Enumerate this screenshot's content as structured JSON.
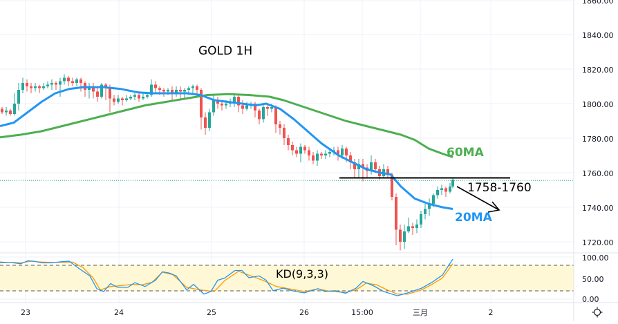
{
  "chart_data": {
    "type": "candlestick",
    "title": "GOLD 1H",
    "symbol": "GOLD",
    "timeframe": "1H",
    "price_axis": {
      "ticks": [
        "1860.00",
        "1840.00",
        "1820.00",
        "1800.00",
        "1780.00",
        "1760.00",
        "1740.00",
        "1720.00"
      ],
      "ylim": [
        1714,
        1862
      ]
    },
    "x_axis": {
      "ticks": [
        "23",
        "24",
        "25",
        "26",
        "15:00",
        "三月",
        "2"
      ]
    },
    "annotations": {
      "ma60_label": "60MA",
      "ma20_label": "20MA",
      "resistance_label": "1758-1760",
      "resistance_level": 1757,
      "current_price_line": 1755.5,
      "arrow": "down-right from resistance"
    },
    "series": [
      {
        "name": "20MA",
        "color": "#2196f3",
        "points": [
          [
            0,
            1787
          ],
          [
            20,
            1789
          ],
          [
            40,
            1795
          ],
          [
            60,
            1801
          ],
          [
            80,
            1806
          ],
          [
            100,
            1808.5
          ],
          [
            120,
            1809.5
          ],
          [
            150,
            1809.5
          ],
          [
            175,
            1808.5
          ],
          [
            200,
            1806.5
          ],
          [
            220,
            1806
          ],
          [
            250,
            1806
          ],
          [
            270,
            1806
          ],
          [
            290,
            1805
          ],
          [
            310,
            1802
          ],
          [
            330,
            1801
          ],
          [
            350,
            1800
          ],
          [
            370,
            1799
          ],
          [
            385,
            1800
          ],
          [
            405,
            1797
          ],
          [
            425,
            1791
          ],
          [
            445,
            1784
          ],
          [
            465,
            1777
          ],
          [
            490,
            1770
          ],
          [
            510,
            1766
          ],
          [
            530,
            1762
          ],
          [
            550,
            1760
          ],
          [
            565,
            1759
          ],
          [
            580,
            1752
          ],
          [
            600,
            1745
          ],
          [
            620,
            1742
          ],
          [
            640,
            1740
          ],
          [
            655,
            1739
          ]
        ]
      },
      {
        "name": "60MA",
        "color": "#4caf50",
        "points": [
          [
            0,
            1780.5
          ],
          [
            30,
            1782
          ],
          [
            60,
            1784
          ],
          [
            90,
            1787
          ],
          [
            120,
            1790
          ],
          [
            150,
            1793
          ],
          [
            180,
            1796
          ],
          [
            210,
            1799
          ],
          [
            240,
            1801
          ],
          [
            270,
            1803
          ],
          [
            300,
            1805
          ],
          [
            330,
            1805.5
          ],
          [
            360,
            1805
          ],
          [
            390,
            1804
          ],
          [
            410,
            1802
          ],
          [
            440,
            1798
          ],
          [
            470,
            1794
          ],
          [
            500,
            1790
          ],
          [
            530,
            1787
          ],
          [
            560,
            1784
          ],
          [
            580,
            1782
          ],
          [
            600,
            1779
          ],
          [
            620,
            1774
          ],
          [
            640,
            1771
          ],
          [
            655,
            1769
          ]
        ]
      },
      {
        "name": "KD-K",
        "color": "#2196f3",
        "points": [
          [
            0,
            88
          ],
          [
            20,
            86
          ],
          [
            30,
            84
          ],
          [
            40,
            91
          ],
          [
            50,
            90
          ],
          [
            60,
            86
          ],
          [
            75,
            86
          ],
          [
            90,
            89
          ],
          [
            100,
            90
          ],
          [
            115,
            72
          ],
          [
            130,
            55
          ],
          [
            140,
            25
          ],
          [
            150,
            18
          ],
          [
            160,
            37
          ],
          [
            170,
            28
          ],
          [
            185,
            28
          ],
          [
            195,
            39
          ],
          [
            210,
            30
          ],
          [
            225,
            45
          ],
          [
            235,
            65
          ],
          [
            245,
            62
          ],
          [
            255,
            55
          ],
          [
            270,
            22
          ],
          [
            280,
            35
          ],
          [
            295,
            12
          ],
          [
            305,
            18
          ],
          [
            315,
            45
          ],
          [
            325,
            50
          ],
          [
            340,
            68
          ],
          [
            350,
            68
          ],
          [
            360,
            51
          ],
          [
            375,
            55
          ],
          [
            385,
            45
          ],
          [
            395,
            20
          ],
          [
            410,
            26
          ],
          [
            425,
            19
          ],
          [
            440,
            15
          ],
          [
            460,
            25
          ],
          [
            470,
            18
          ],
          [
            485,
            20
          ],
          [
            500,
            14
          ],
          [
            515,
            26
          ],
          [
            525,
            42
          ],
          [
            540,
            32
          ],
          [
            555,
            18
          ],
          [
            575,
            8
          ],
          [
            590,
            15
          ],
          [
            610,
            26
          ],
          [
            625,
            40
          ],
          [
            640,
            57
          ],
          [
            655,
            95
          ]
        ]
      },
      {
        "name": "KD-D",
        "color": "#ff9800",
        "points": [
          [
            0,
            86
          ],
          [
            20,
            87
          ],
          [
            30,
            86
          ],
          [
            45,
            90
          ],
          [
            60,
            88
          ],
          [
            75,
            87
          ],
          [
            95,
            87
          ],
          [
            105,
            88
          ],
          [
            120,
            75
          ],
          [
            135,
            50
          ],
          [
            145,
            22
          ],
          [
            160,
            30
          ],
          [
            175,
            32
          ],
          [
            190,
            35
          ],
          [
            205,
            34
          ],
          [
            220,
            40
          ],
          [
            235,
            64
          ],
          [
            250,
            58
          ],
          [
            270,
            28
          ],
          [
            290,
            22
          ],
          [
            310,
            18
          ],
          [
            325,
            44
          ],
          [
            345,
            66
          ],
          [
            360,
            57
          ],
          [
            380,
            45
          ],
          [
            400,
            30
          ],
          [
            420,
            24
          ],
          [
            440,
            18
          ],
          [
            460,
            24
          ],
          [
            480,
            18
          ],
          [
            500,
            16
          ],
          [
            515,
            22
          ],
          [
            530,
            38
          ],
          [
            545,
            34
          ],
          [
            560,
            22
          ],
          [
            575,
            12
          ],
          [
            590,
            12
          ],
          [
            610,
            22
          ],
          [
            625,
            35
          ],
          [
            640,
            50
          ],
          [
            655,
            84
          ]
        ]
      }
    ],
    "indicator": {
      "name": "KD(9,3,3)",
      "ticks": [
        "100.00",
        "50.00",
        "0.00"
      ],
      "upper_band": 80,
      "lower_band": 20,
      "k_color": "#2196f3",
      "d_color": "#ff9800",
      "band_fill": "#fff8d6"
    },
    "candles": [
      [
        3,
        1797,
        1795,
        1798,
        1794
      ],
      [
        9,
        1795,
        1796,
        1798,
        1793
      ],
      [
        15,
        1796,
        1794,
        1797,
        1793
      ],
      [
        21,
        1794,
        1800,
        1806,
        1793
      ],
      [
        27,
        1800,
        1808,
        1812,
        1796
      ],
      [
        33,
        1808,
        1812,
        1815,
        1806
      ],
      [
        39,
        1812,
        1810,
        1814,
        1807
      ],
      [
        45,
        1810,
        1809,
        1812,
        1806
      ],
      [
        51,
        1809,
        1810,
        1812,
        1807
      ],
      [
        57,
        1810,
        1809,
        1811,
        1806
      ],
      [
        63,
        1809,
        1810,
        1812,
        1808
      ],
      [
        69,
        1810,
        1811,
        1813,
        1809
      ],
      [
        75,
        1811,
        1812,
        1814,
        1808
      ],
      [
        81,
        1812,
        1811,
        1813,
        1808
      ],
      [
        87,
        1811,
        1813,
        1815,
        1804
      ],
      [
        93,
        1813,
        1815,
        1817,
        1811
      ],
      [
        99,
        1815,
        1813,
        1816,
        1810
      ],
      [
        105,
        1813,
        1812,
        1815,
        1810
      ],
      [
        111,
        1812,
        1814,
        1815,
        1810
      ],
      [
        117,
        1814,
        1812,
        1815,
        1807
      ],
      [
        123,
        1812,
        1808,
        1813,
        1804
      ],
      [
        129,
        1808,
        1810,
        1812,
        1803
      ],
      [
        135,
        1810,
        1807,
        1812,
        1803
      ],
      [
        141,
        1807,
        1804,
        1810,
        1801
      ],
      [
        147,
        1804,
        1811,
        1812,
        1803
      ],
      [
        153,
        1811,
        1809,
        1812,
        1802
      ],
      [
        159,
        1809,
        1803,
        1811,
        1795
      ],
      [
        165,
        1803,
        1801,
        1805,
        1799
      ],
      [
        171,
        1801,
        1803,
        1805,
        1800
      ],
      [
        177,
        1803,
        1802,
        1804,
        1799
      ],
      [
        183,
        1802,
        1803,
        1805,
        1801
      ],
      [
        189,
        1803,
        1804,
        1805,
        1802
      ],
      [
        195,
        1804,
        1805,
        1806,
        1802
      ],
      [
        201,
        1805,
        1803,
        1807,
        1801
      ],
      [
        207,
        1803,
        1804,
        1806,
        1802
      ],
      [
        213,
        1804,
        1805,
        1806,
        1803
      ],
      [
        219,
        1805,
        1811,
        1814,
        1804
      ],
      [
        225,
        1811,
        1809,
        1813,
        1806
      ],
      [
        231,
        1809,
        1808,
        1810,
        1805
      ],
      [
        237,
        1808,
        1807,
        1809,
        1804
      ],
      [
        243,
        1807,
        1808,
        1809,
        1805
      ],
      [
        249,
        1808,
        1806,
        1810,
        1802
      ],
      [
        255,
        1806,
        1808,
        1810,
        1804
      ],
      [
        261,
        1808,
        1807,
        1810,
        1803
      ],
      [
        267,
        1807,
        1808,
        1809,
        1803
      ],
      [
        273,
        1808,
        1809,
        1810,
        1805
      ],
      [
        279,
        1809,
        1810,
        1811,
        1806
      ],
      [
        285,
        1810,
        1808,
        1811,
        1804
      ],
      [
        291,
        1808,
        1792,
        1809,
        1785
      ],
      [
        297,
        1792,
        1786,
        1795,
        1782
      ],
      [
        303,
        1786,
        1795,
        1797,
        1784
      ],
      [
        309,
        1795,
        1802,
        1805,
        1793
      ],
      [
        315,
        1802,
        1800,
        1804,
        1797
      ],
      [
        321,
        1800,
        1799,
        1802,
        1796
      ],
      [
        327,
        1799,
        1800,
        1802,
        1797
      ],
      [
        333,
        1800,
        1801,
        1803,
        1798
      ],
      [
        339,
        1801,
        1804,
        1806,
        1798
      ],
      [
        345,
        1804,
        1799,
        1805,
        1795
      ],
      [
        351,
        1799,
        1797,
        1802,
        1794
      ],
      [
        357,
        1797,
        1799,
        1801,
        1796
      ],
      [
        363,
        1799,
        1800,
        1801,
        1797
      ],
      [
        369,
        1800,
        1796,
        1801,
        1792
      ],
      [
        375,
        1796,
        1791,
        1797,
        1788
      ],
      [
        381,
        1791,
        1798,
        1800,
        1789
      ],
      [
        387,
        1798,
        1797,
        1799,
        1793
      ],
      [
        393,
        1797,
        1798,
        1800,
        1795
      ],
      [
        399,
        1798,
        1788,
        1799,
        1783
      ],
      [
        405,
        1788,
        1786,
        1790,
        1782
      ],
      [
        411,
        1786,
        1780,
        1788,
        1776
      ],
      [
        417,
        1780,
        1776,
        1782,
        1773
      ],
      [
        423,
        1776,
        1773,
        1778,
        1770
      ],
      [
        429,
        1773,
        1771,
        1775,
        1769
      ],
      [
        435,
        1771,
        1775,
        1777,
        1766
      ],
      [
        441,
        1775,
        1773,
        1776,
        1771
      ],
      [
        447,
        1773,
        1770,
        1775,
        1767
      ],
      [
        453,
        1770,
        1767,
        1772,
        1765
      ],
      [
        459,
        1767,
        1771,
        1773,
        1764
      ],
      [
        465,
        1771,
        1770,
        1772,
        1768
      ],
      [
        471,
        1770,
        1771,
        1773,
        1768
      ],
      [
        477,
        1771,
        1772,
        1774,
        1769
      ],
      [
        483,
        1772,
        1773,
        1775,
        1770
      ],
      [
        489,
        1773,
        1770,
        1775,
        1767
      ],
      [
        495,
        1770,
        1774,
        1776,
        1768
      ],
      [
        501,
        1774,
        1770,
        1775,
        1766
      ],
      [
        507,
        1770,
        1766,
        1772,
        1762
      ],
      [
        513,
        1766,
        1762,
        1768,
        1757
      ],
      [
        519,
        1762,
        1765,
        1768,
        1757
      ],
      [
        525,
        1765,
        1763,
        1768,
        1755
      ],
      [
        531,
        1763,
        1761,
        1765,
        1757
      ],
      [
        537,
        1761,
        1766,
        1770,
        1759
      ],
      [
        543,
        1766,
        1762,
        1768,
        1760
      ],
      [
        549,
        1762,
        1758,
        1764,
        1756
      ],
      [
        555,
        1758,
        1762,
        1765,
        1757
      ],
      [
        561,
        1762,
        1759,
        1764,
        1757
      ],
      [
        567,
        1759,
        1746,
        1760,
        1744
      ],
      [
        573,
        1746,
        1727,
        1748,
        1718
      ],
      [
        579,
        1727,
        1720,
        1730,
        1715
      ],
      [
        585,
        1720,
        1726,
        1730,
        1716
      ],
      [
        591,
        1726,
        1729,
        1734,
        1725
      ],
      [
        597,
        1729,
        1728,
        1731,
        1724
      ],
      [
        603,
        1728,
        1730,
        1733,
        1725
      ],
      [
        609,
        1730,
        1736,
        1738,
        1728
      ],
      [
        615,
        1736,
        1739,
        1742,
        1733
      ],
      [
        621,
        1739,
        1742,
        1745,
        1735
      ],
      [
        627,
        1742,
        1747,
        1748,
        1740
      ],
      [
        633,
        1747,
        1750,
        1752,
        1745
      ],
      [
        639,
        1750,
        1751,
        1753,
        1747
      ],
      [
        645,
        1751,
        1749,
        1752,
        1746
      ],
      [
        651,
        1749,
        1752,
        1754,
        1748
      ],
      [
        655,
        1752,
        1756,
        1757,
        1751
      ]
    ],
    "colors": {
      "up": "#26a69a",
      "down": "#ef5350",
      "grid": "#eef0f8",
      "annotation_text": "#000000",
      "ma60_text": "#4caf50",
      "ma20_text": "#2196f3",
      "price_line": "#26a69a"
    }
  },
  "toolbar": {
    "settings_icon": "gear-icon"
  }
}
